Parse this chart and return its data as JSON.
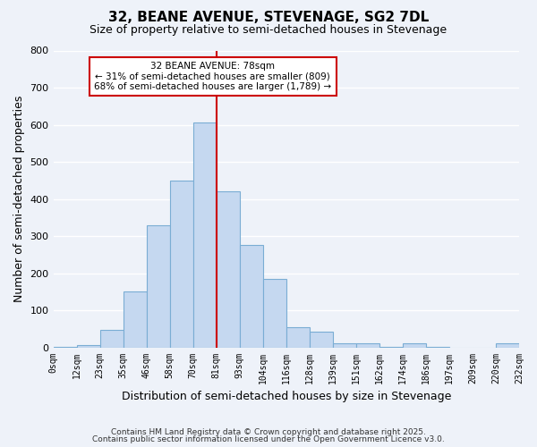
{
  "title": "32, BEANE AVENUE, STEVENAGE, SG2 7DL",
  "subtitle": "Size of property relative to semi-detached houses in Stevenage",
  "xlabel": "Distribution of semi-detached houses by size in Stevenage",
  "ylabel": "Number of semi-detached properties",
  "bar_color": "#c5d8f0",
  "bar_edge_color": "#7aadd4",
  "bin_labels": [
    "0sqm",
    "12sqm",
    "23sqm",
    "35sqm",
    "46sqm",
    "58sqm",
    "70sqm",
    "81sqm",
    "93sqm",
    "104sqm",
    "116sqm",
    "128sqm",
    "139sqm",
    "151sqm",
    "162sqm",
    "174sqm",
    "186sqm",
    "197sqm",
    "209sqm",
    "220sqm",
    "232sqm"
  ],
  "bar_heights": [
    2,
    6,
    47,
    150,
    330,
    450,
    605,
    420,
    275,
    185,
    55,
    42,
    12,
    10,
    2,
    10,
    1,
    0,
    0,
    12
  ],
  "ylim": [
    0,
    800
  ],
  "yticks": [
    0,
    100,
    200,
    300,
    400,
    500,
    600,
    700,
    800
  ],
  "marker_bin_index": 7,
  "annotation_title": "32 BEANE AVENUE: 78sqm",
  "annotation_line1": "← 31% of semi-detached houses are smaller (809)",
  "annotation_line2": "68% of semi-detached houses are larger (1,789) →",
  "footnote1": "Contains HM Land Registry data © Crown copyright and database right 2025.",
  "footnote2": "Contains public sector information licensed under the Open Government Licence v3.0.",
  "background_color": "#eef2f9",
  "grid_color": "#ffffff",
  "annotation_box_color": "#ffffff",
  "annotation_box_edge": "#cc0000",
  "marker_line_color": "#cc0000"
}
